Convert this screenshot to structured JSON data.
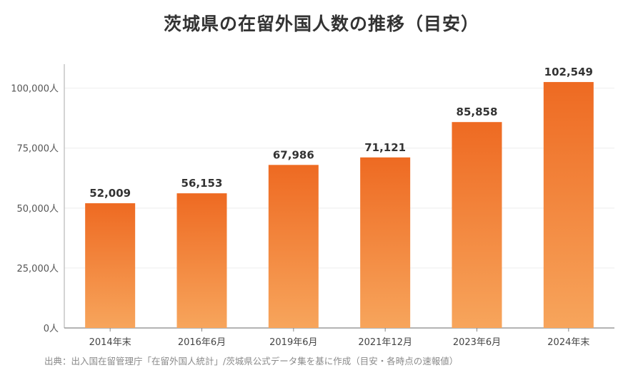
{
  "chart_data": {
    "type": "bar",
    "title": "茨城県の在留外国人数の推移（目安）",
    "categories": [
      "2014年末",
      "2016年6月",
      "2019年6月",
      "2021年12月",
      "2023年6月",
      "2024年末"
    ],
    "values": [
      52009,
      56153,
      67986,
      71121,
      85858,
      102549
    ],
    "value_labels": [
      "52,009",
      "56,153",
      "67,986",
      "71,121",
      "85,858",
      "102,549"
    ],
    "ylim": [
      0,
      110000
    ],
    "yticks": [
      0,
      25000,
      50000,
      75000,
      100000
    ],
    "ytick_labels": [
      "0人",
      "25,000人",
      "50,000人",
      "75,000人",
      "100,000人"
    ],
    "grid": true,
    "bar_colors": {
      "top": "#ee6a22",
      "bottom": "#f7a55c"
    },
    "source": "出典：出入国在留管理庁「在留外国人統計」/茨城県公式データ集を基に作成（目安・各時点の速報値）"
  }
}
